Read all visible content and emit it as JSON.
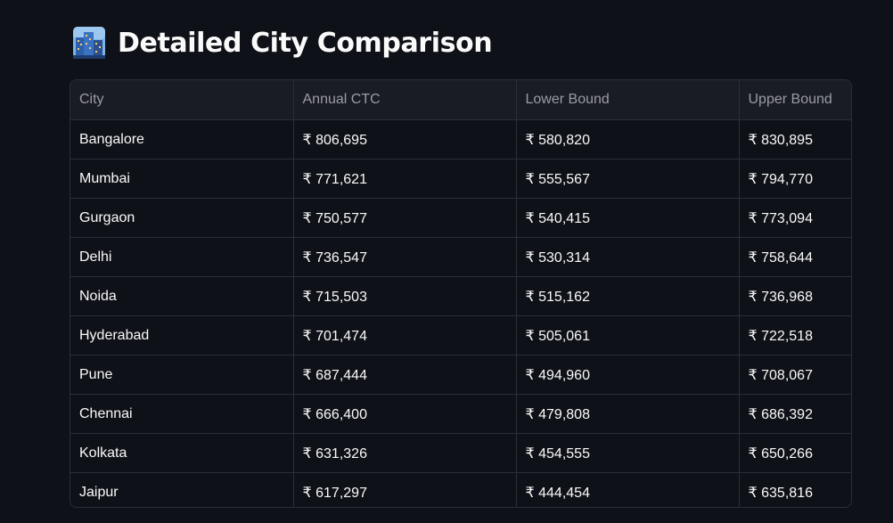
{
  "header": {
    "icon": "cityscape-icon",
    "title": "Detailed City Comparison"
  },
  "table": {
    "columns": [
      "City",
      "Annual CTC",
      "Lower Bound",
      "Upper Bound"
    ],
    "rows": [
      [
        "Bangalore",
        "₹ 806,695",
        "₹ 580,820",
        "₹ 830,895"
      ],
      [
        "Mumbai",
        "₹ 771,621",
        "₹ 555,567",
        "₹ 794,770"
      ],
      [
        "Gurgaon",
        "₹ 750,577",
        "₹ 540,415",
        "₹ 773,094"
      ],
      [
        "Delhi",
        "₹ 736,547",
        "₹ 530,314",
        "₹ 758,644"
      ],
      [
        "Noida",
        "₹ 715,503",
        "₹ 515,162",
        "₹ 736,968"
      ],
      [
        "Hyderabad",
        "₹ 701,474",
        "₹ 505,061",
        "₹ 722,518"
      ],
      [
        "Pune",
        "₹ 687,444",
        "₹ 494,960",
        "₹ 708,067"
      ],
      [
        "Chennai",
        "₹ 666,400",
        "₹ 479,808",
        "₹ 686,392"
      ],
      [
        "Kolkata",
        "₹ 631,326",
        "₹ 454,555",
        "₹ 650,266"
      ],
      [
        "Jaipur",
        "₹ 617,297",
        "₹ 444,454",
        "₹ 635,816"
      ]
    ]
  },
  "colors": {
    "background": "#0e1117",
    "header_bg": "#1a1c24",
    "border": "#2b2e36",
    "text": "#fafafa",
    "header_text": "#9a9ba3"
  }
}
